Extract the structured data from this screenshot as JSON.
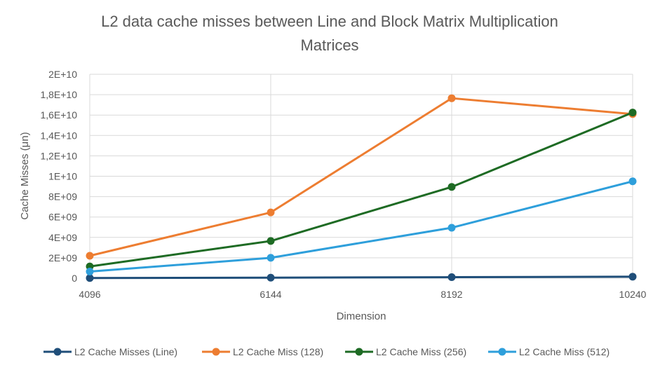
{
  "chart_data": {
    "type": "line",
    "title": "L2 data cache misses between Line and Block Matrix Multiplication Matrices",
    "title_lines": [
      "L2 data cache misses between Line and Block Matrix Multiplication",
      "Matrices"
    ],
    "xlabel": "Dimension",
    "ylabel": "Cache Misses (μn)",
    "categories": [
      "4096",
      "6144",
      "8192",
      "10240"
    ],
    "ylim": [
      0,
      20000000000
    ],
    "yticks": [
      0,
      2000000000,
      4000000000,
      6000000000,
      8000000000,
      10000000000,
      12000000000,
      14000000000,
      16000000000,
      18000000000,
      20000000000
    ],
    "ytick_labels": [
      "0",
      "2E+09",
      "4E+09",
      "6E+09",
      "8E+09",
      "1E+10",
      "1,2E+10",
      "1,4E+10",
      "1,6E+10",
      "1,8E+10",
      "2E+10"
    ],
    "grid": "vertical-and-horizontal",
    "legend_position": "bottom",
    "series": [
      {
        "name": "L2 Cache Misses (Line)",
        "color": "#1f4e79",
        "values": [
          20000000,
          50000000,
          100000000,
          150000000
        ]
      },
      {
        "name": "L2 Cache Miss (128)",
        "color": "#ed7d31",
        "values": [
          2200000000,
          6450000000,
          17650000000,
          16100000000
        ]
      },
      {
        "name": "L2 Cache Miss (256)",
        "color": "#1e6b24",
        "values": [
          1150000000,
          3650000000,
          8950000000,
          16250000000
        ]
      },
      {
        "name": "L2 Cache Miss (512)",
        "color": "#2e9fdb",
        "values": [
          650000000,
          2000000000,
          4950000000,
          9500000000
        ]
      }
    ]
  }
}
